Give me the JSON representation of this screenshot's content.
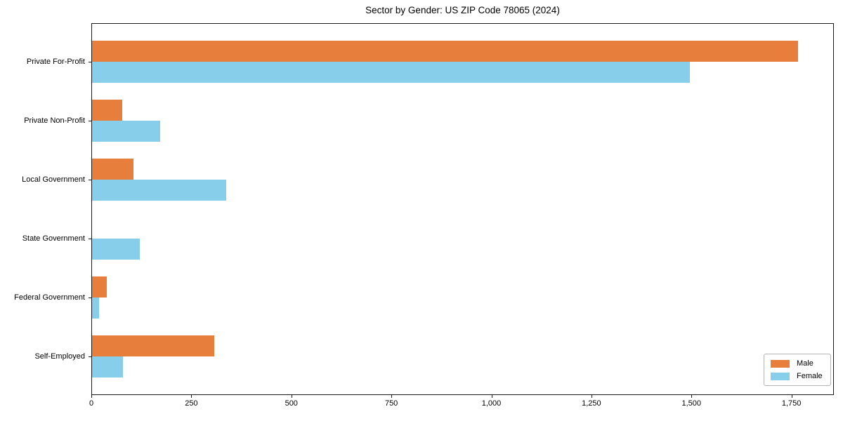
{
  "chart_data": {
    "type": "bar",
    "orientation": "horizontal",
    "title": "Sector by Gender: US ZIP Code 78065 (2024)",
    "categories": [
      "Private For-Profit",
      "Private Non-Profit",
      "Local Government",
      "State Government",
      "Federal Government",
      "Self-Employed"
    ],
    "series": [
      {
        "name": "Male",
        "color": "#e87e3c",
        "values": [
          1765,
          75,
          104,
          0,
          37,
          305
        ]
      },
      {
        "name": "Female",
        "color": "#87ceeb",
        "values": [
          1495,
          171,
          336,
          119,
          17,
          77
        ]
      }
    ],
    "x_axis": {
      "min": 0,
      "max": 1856,
      "ticks": [
        0,
        250,
        500,
        750,
        1000,
        1250,
        1500,
        1750
      ],
      "tick_labels": [
        "0",
        "250",
        "500",
        "750",
        "1,000",
        "1,250",
        "1,500",
        "1,750"
      ]
    },
    "y_axis": {
      "label": ""
    },
    "xlabel": "",
    "ylabel": "",
    "legend": {
      "position": "lower right",
      "entries": [
        "Male",
        "Female"
      ]
    },
    "grid": false,
    "colors": {
      "male": "#e87e3c",
      "female": "#87ceeb",
      "axis": "#1a1a1a",
      "background": "#ffffff"
    }
  }
}
